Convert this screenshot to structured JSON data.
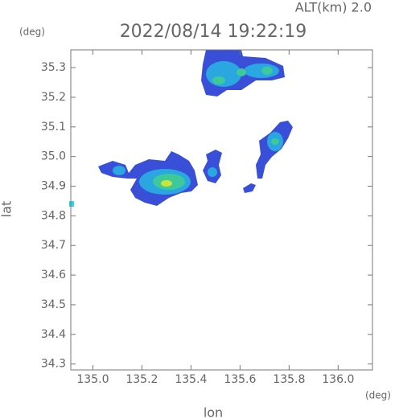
{
  "chart_data": {
    "type": "radar-map",
    "title": "2022/08/14 19:22:19",
    "subtitle": "ALT(km) 2.0",
    "x_label": "lon",
    "y_label": "lat",
    "x_unit": "(deg)",
    "y_unit": "(deg)",
    "xlim": [
      134.91,
      136.14
    ],
    "ylim": [
      34.28,
      35.36
    ],
    "xticks": [
      {
        "value": 135.0,
        "label": "135.0"
      },
      135.2,
      135.4,
      135.6,
      135.8,
      {
        "value": 136.0,
        "label": "136.0"
      }
    ],
    "yticks": [
      34.3,
      34.4,
      34.5,
      34.6,
      34.7,
      34.8,
      34.9,
      {
        "value": 35.0,
        "label": "35.0"
      },
      35.1,
      35.2,
      35.3
    ]
  }
}
